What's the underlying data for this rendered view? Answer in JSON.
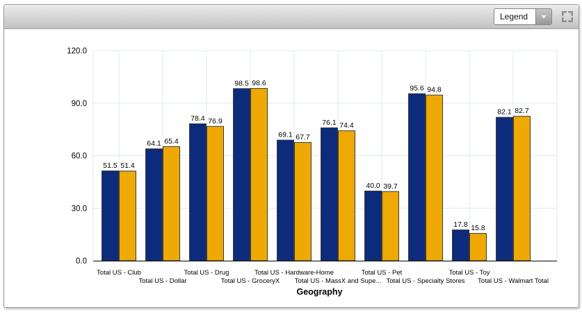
{
  "toolbar": {
    "legend_dropdown_label": "Legend"
  },
  "colors": {
    "series1": "#0D2B7C",
    "series2": "#EEA904",
    "gridline": "#DCE9F5",
    "axis": "#000000",
    "bar_border": "#3a3a3a"
  },
  "chart_data": {
    "type": "bar",
    "title": "",
    "xlabel": "Geography",
    "ylabel": "",
    "ylim": [
      0,
      120
    ],
    "grid": true,
    "legend_position": "collapsed-dropdown",
    "value_labels_shown": true,
    "yticks": [
      0,
      30,
      60,
      90,
      120
    ],
    "ytick_labels": [
      "0.0",
      "30.0",
      "60.0",
      "90.0",
      "120.0"
    ],
    "categories": [
      "Total US - Club",
      "Total US - Dollar",
      "Total US - Drug",
      "Total US - GroceryX",
      "Total US - Hardware-Home",
      "Total US - MassX and Supe...",
      "Total US - Pet",
      "Total US - Specialty Stores",
      "Total US - Toy",
      "Total US - Walmart Total"
    ],
    "series": [
      {
        "color": "#0D2B7C",
        "values": [
          51.5,
          64.1,
          78.4,
          98.5,
          69.1,
          76.1,
          40.0,
          95.6,
          17.8,
          82.1
        ]
      },
      {
        "color": "#EEA904",
        "values": [
          51.4,
          65.4,
          76.9,
          98.6,
          67.7,
          74.4,
          39.7,
          94.8,
          15.8,
          82.7
        ]
      }
    ]
  }
}
